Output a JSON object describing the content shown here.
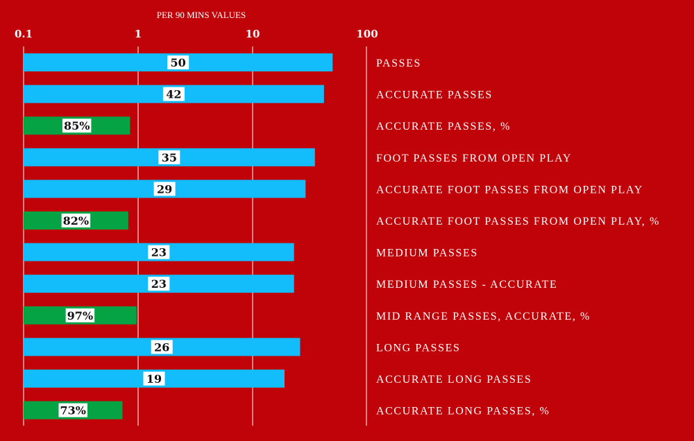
{
  "chart_data": {
    "type": "bar",
    "orientation": "horizontal",
    "x_title": "PER 90 MINS VALUES",
    "x_scale": "log",
    "x_ticks": [
      "0.1",
      "1",
      "10",
      "100"
    ],
    "xlim": [
      0.1,
      100
    ],
    "grid": true,
    "categories": [
      "PASSES",
      "ACCURATE PASSES",
      "ACCURATE PASSES, %",
      "FOOT PASSES FROM OPEN PLAY",
      "ACCURATE FOOT PASSES FROM OPEN PLAY",
      "ACCURATE FOOT PASSES FROM OPEN PLAY, %",
      "MEDIUM PASSES",
      "MEDIUM PASSES - ACCURATE",
      "MID RANGE PASSES, ACCURATE, %",
      "LONG PASSES",
      "ACCURATE LONG PASSES",
      "ACCURATE LONG PASSES, %"
    ],
    "values": [
      50,
      42,
      0.85,
      35,
      29,
      0.82,
      23,
      23,
      0.97,
      26,
      19,
      0.73
    ],
    "value_labels": [
      "50",
      "42",
      "85%",
      "35",
      "29",
      "82%",
      "23",
      "23",
      "97%",
      "26",
      "19",
      "73%"
    ],
    "is_percent": [
      false,
      false,
      true,
      false,
      false,
      true,
      false,
      false,
      true,
      false,
      false,
      true
    ],
    "colors": {
      "background": "#c00309",
      "count_bar": "#13bdfb",
      "percent_bar": "#05a343",
      "gridline": "#ffffff",
      "label_box": "#ffffff"
    }
  }
}
